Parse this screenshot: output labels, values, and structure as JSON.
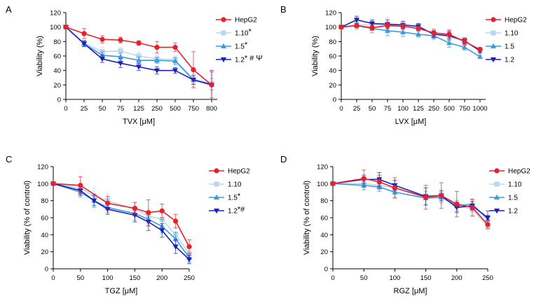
{
  "colors": {
    "HepG2": "#e8202a",
    "1.10": "#bcd6ef",
    "1.5": "#3a9be0",
    "1.2": "#1d1fb5"
  },
  "series_colors": [
    "#e8202a",
    "#bcd6ef",
    "#3a9be0",
    "#1d1fb5"
  ],
  "markers": [
    "circle",
    "square",
    "triangle-up",
    "triangle-down"
  ],
  "chart_data": [
    {
      "panel": "A",
      "type": "line",
      "xlabel": "TVX [μM]",
      "ylabel": "Viability (%)",
      "x_axis": "categorical",
      "categories": [
        "0",
        "25",
        "50",
        "75",
        "125",
        "250",
        "500",
        "750",
        "800"
      ],
      "ylim": [
        0,
        120
      ],
      "yticks": [
        0,
        20,
        40,
        60,
        80,
        100,
        120
      ],
      "legend": "right",
      "series": [
        {
          "name": "HepG2",
          "values": [
            100,
            91,
            83,
            82,
            78,
            72,
            72,
            41,
            20
          ],
          "err": [
            0,
            7,
            5,
            4,
            3,
            8,
            6,
            25,
            18
          ]
        },
        {
          "name": "1.10",
          "values": [
            100,
            78,
            66,
            67,
            60,
            56,
            55,
            28,
            22
          ],
          "err": [
            0,
            4,
            6,
            5,
            5,
            5,
            5,
            10,
            12
          ],
          "marks": "*"
        },
        {
          "name": "1.5",
          "values": [
            100,
            77,
            61,
            59,
            54,
            54,
            53,
            27,
            21
          ],
          "err": [
            0,
            4,
            5,
            5,
            5,
            4,
            5,
            6,
            8
          ],
          "marks": "*"
        },
        {
          "name": "1.2",
          "values": [
            100,
            77,
            56,
            50,
            45,
            40,
            40,
            27,
            20
          ],
          "err": [
            0,
            4,
            5,
            6,
            5,
            5,
            4,
            6,
            20
          ],
          "marks": "* # Ψ"
        }
      ]
    },
    {
      "panel": "B",
      "type": "line",
      "xlabel": "LVX [μM]",
      "ylabel": "Viability (%)",
      "x_axis": "categorical",
      "categories": [
        "0",
        "25",
        "50",
        "75",
        "100",
        "125",
        "250",
        "500",
        "750",
        "1000"
      ],
      "ylim": [
        0,
        120
      ],
      "yticks": [
        0,
        20,
        40,
        60,
        80,
        100,
        120
      ],
      "legend": "right",
      "series": [
        {
          "name": "HepG2",
          "values": [
            100,
            102,
            99,
            102,
            101,
            98,
            92,
            90,
            80,
            69
          ],
          "err": [
            0,
            3,
            3,
            4,
            4,
            3,
            5,
            6,
            5,
            3
          ]
        },
        {
          "name": "1.10",
          "values": [
            100,
            103,
            103,
            103,
            102,
            100,
            90,
            87,
            80,
            68
          ],
          "err": [
            0,
            4,
            6,
            10,
            6,
            5,
            5,
            8,
            5,
            3
          ]
        },
        {
          "name": "1.5",
          "values": [
            100,
            102,
            98,
            95,
            93,
            90,
            88,
            78,
            72,
            59
          ],
          "err": [
            0,
            5,
            6,
            7,
            6,
            4,
            5,
            6,
            4,
            2
          ]
        },
        {
          "name": "1.2",
          "values": [
            100,
            110,
            105,
            104,
            103,
            101,
            90,
            88,
            81,
            67
          ],
          "err": [
            0,
            5,
            5,
            6,
            5,
            4,
            5,
            6,
            4,
            3
          ]
        }
      ]
    },
    {
      "panel": "C",
      "type": "line",
      "xlabel": "TGZ [μM]",
      "ylabel": "Viability (% of control)",
      "x_axis": "linear",
      "xlim": [
        0,
        250
      ],
      "xticks": [
        0,
        50,
        100,
        150,
        200,
        250
      ],
      "ylim": [
        0,
        120
      ],
      "yticks": [
        0,
        20,
        40,
        60,
        80,
        100,
        120
      ],
      "legend": "right",
      "series": [
        {
          "name": "HepG2",
          "x": [
            0,
            50,
            100,
            150,
            175,
            200,
            225,
            250
          ],
          "values": [
            100,
            98,
            77,
            71,
            66,
            68,
            56,
            26
          ],
          "err": [
            0,
            10,
            8,
            7,
            15,
            8,
            8,
            8
          ]
        },
        {
          "name": "1.10",
          "x": [
            0,
            50,
            75,
            100,
            150,
            175,
            200,
            225,
            250
          ],
          "values": [
            100,
            95,
            85,
            80,
            70,
            62,
            58,
            40,
            18
          ],
          "err": [
            0,
            8,
            10,
            8,
            8,
            8,
            8,
            8,
            6
          ]
        },
        {
          "name": "1.5",
          "x": [
            0,
            50,
            75,
            100,
            150,
            175,
            200,
            225,
            250
          ],
          "values": [
            100,
            90,
            80,
            72,
            65,
            58,
            50,
            35,
            13
          ],
          "err": [
            0,
            6,
            8,
            6,
            8,
            8,
            8,
            8,
            5
          ],
          "marks": "*"
        },
        {
          "name": "1.2",
          "x": [
            0,
            50,
            75,
            100,
            150,
            175,
            200,
            225,
            250
          ],
          "values": [
            100,
            92,
            80,
            70,
            63,
            55,
            45,
            26,
            11
          ],
          "err": [
            0,
            6,
            6,
            6,
            8,
            10,
            8,
            8,
            5
          ],
          "marks": "*#"
        }
      ]
    },
    {
      "panel": "D",
      "type": "line",
      "xlabel": "RGZ [μM]",
      "ylabel": "Viability (% of control)",
      "x_axis": "linear",
      "xlim": [
        0,
        250
      ],
      "xticks": [
        0,
        50,
        100,
        150,
        200,
        250
      ],
      "ylim": [
        0,
        120
      ],
      "yticks": [
        0,
        20,
        40,
        60,
        80,
        100,
        120
      ],
      "legend": "right",
      "series": [
        {
          "name": "HepG2",
          "x": [
            0,
            50,
            75,
            100,
            150,
            175,
            200,
            225,
            250
          ],
          "values": [
            100,
            106,
            102,
            95,
            84,
            86,
            76,
            72,
            52
          ],
          "err": [
            0,
            10,
            8,
            12,
            14,
            15,
            15,
            10,
            5
          ]
        },
        {
          "name": "1.10",
          "x": [
            0,
            50,
            75,
            100,
            150,
            175,
            200,
            225,
            250
          ],
          "values": [
            100,
            100,
            98,
            95,
            85,
            84,
            75,
            70,
            50
          ],
          "err": [
            0,
            8,
            6,
            8,
            10,
            8,
            8,
            8,
            5
          ]
        },
        {
          "name": "1.5",
          "x": [
            0,
            50,
            75,
            100,
            150,
            175,
            200,
            225,
            250
          ],
          "values": [
            100,
            98,
            96,
            90,
            83,
            84,
            74,
            76,
            58
          ],
          "err": [
            0,
            5,
            5,
            6,
            8,
            6,
            6,
            5,
            5
          ]
        },
        {
          "name": "1.2",
          "x": [
            0,
            50,
            75,
            100,
            150,
            175,
            200,
            225,
            250
          ],
          "values": [
            100,
            105,
            105,
            98,
            85,
            86,
            72,
            74,
            60
          ],
          "err": [
            0,
            5,
            8,
            6,
            10,
            6,
            6,
            5,
            8
          ]
        }
      ]
    }
  ]
}
